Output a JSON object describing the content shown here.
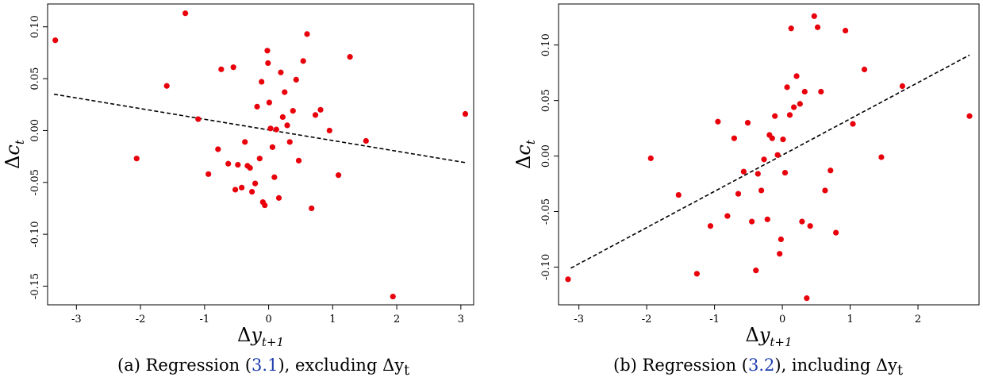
{
  "chart_data": [
    {
      "type": "scatter",
      "panel": "(a)",
      "xlabel": "Δy_{t+1}",
      "ylabel": "Δc_t",
      "xlim": [
        -3.45,
        3.2
      ],
      "ylim": [
        -0.168,
        0.122
      ],
      "xticks": [
        -3,
        -2,
        -1,
        0,
        1,
        2,
        3
      ],
      "yticks": [
        -0.15,
        -0.1,
        -0.05,
        0.0,
        0.05,
        0.1
      ],
      "xtick_labels": [
        "-3",
        "-2",
        "-1",
        "0",
        "1",
        "2",
        "3"
      ],
      "ytick_labels": [
        "-0.15",
        "-0.10",
        "-0.05",
        "0.00",
        "0.05",
        "0.10"
      ],
      "point_color": "#e8000b",
      "fit_line": {
        "x": [
          -3.35,
          3.08
        ],
        "y": [
          0.035,
          -0.031
        ]
      },
      "points": {
        "x": [
          -3.33,
          -1.3,
          -2.06,
          -1.59,
          -1.1,
          -0.94,
          -0.79,
          -0.74,
          -0.63,
          -0.55,
          -0.52,
          -0.48,
          -0.42,
          -0.37,
          -0.33,
          -0.29,
          -0.26,
          -0.21,
          -0.18,
          -0.14,
          -0.11,
          -0.09,
          -0.06,
          -0.02,
          -0.01,
          0.01,
          0.03,
          0.06,
          0.09,
          0.12,
          0.16,
          0.19,
          0.22,
          0.25,
          0.29,
          0.33,
          0.38,
          0.43,
          0.47,
          0.54,
          0.6,
          0.67,
          0.73,
          0.81,
          0.95,
          1.09,
          1.27,
          1.52,
          1.94,
          3.07
        ],
        "y": [
          0.087,
          0.113,
          -0.027,
          0.043,
          0.011,
          -0.042,
          -0.018,
          0.059,
          -0.032,
          0.061,
          -0.057,
          -0.033,
          -0.055,
          -0.011,
          -0.034,
          -0.036,
          -0.059,
          -0.051,
          0.023,
          -0.027,
          0.047,
          -0.069,
          -0.072,
          0.077,
          0.065,
          0.027,
          0.002,
          -0.016,
          -0.045,
          0.001,
          -0.065,
          0.056,
          0.013,
          0.037,
          0.005,
          -0.011,
          0.019,
          0.049,
          -0.029,
          0.067,
          0.093,
          -0.075,
          0.015,
          0.02,
          0.0,
          -0.043,
          0.071,
          -0.01,
          -0.16,
          0.016
        ]
      }
    },
    {
      "type": "scatter",
      "panel": "(b)",
      "xlabel": "Δy_{t+1}",
      "ylabel": "Δc_t",
      "xlim": [
        -3.3,
        2.9
      ],
      "ylim": [
        -0.134,
        0.137
      ],
      "xticks": [
        -3,
        -2,
        -1,
        0,
        1,
        2
      ],
      "yticks": [
        -0.1,
        -0.05,
        0.0,
        0.05,
        0.1
      ],
      "xtick_labels": [
        "-3",
        "-2",
        "-1",
        "0",
        "1",
        "2"
      ],
      "ytick_labels": [
        "-0.10",
        "-0.05",
        "0.00",
        "0.05",
        "0.10"
      ],
      "point_color": "#e8000b",
      "fit_line": {
        "x": [
          -3.12,
          2.76
        ],
        "y": [
          -0.101,
          0.091
        ]
      },
      "points": {
        "x": [
          -3.16,
          -1.94,
          -1.53,
          -1.26,
          -1.06,
          -0.95,
          -0.81,
          -0.71,
          -0.65,
          -0.57,
          -0.51,
          -0.45,
          -0.39,
          -0.36,
          -0.31,
          -0.27,
          -0.22,
          -0.19,
          -0.15,
          -0.11,
          -0.07,
          -0.04,
          -0.02,
          0.01,
          0.04,
          0.07,
          0.11,
          0.13,
          0.17,
          0.21,
          0.26,
          0.29,
          0.33,
          0.36,
          0.41,
          0.47,
          0.52,
          0.57,
          0.63,
          0.71,
          0.79,
          0.93,
          1.04,
          1.21,
          1.46,
          1.77,
          2.76
        ],
        "y": [
          -0.111,
          -0.002,
          -0.035,
          -0.106,
          -0.063,
          0.031,
          -0.054,
          0.016,
          -0.034,
          -0.014,
          0.03,
          -0.059,
          -0.103,
          -0.016,
          -0.031,
          -0.003,
          -0.057,
          0.019,
          0.016,
          0.036,
          0.001,
          -0.088,
          -0.075,
          0.015,
          -0.015,
          0.062,
          0.037,
          0.115,
          0.044,
          0.072,
          0.047,
          -0.059,
          0.058,
          -0.128,
          -0.063,
          0.126,
          0.116,
          0.058,
          -0.031,
          -0.013,
          -0.069,
          0.113,
          0.029,
          0.078,
          -0.001,
          0.063,
          0.036
        ]
      }
    }
  ],
  "captions": {
    "a": {
      "prefix": "(a) Regression (",
      "ref": "3.1",
      "suffix": "), excluding Δy",
      "sub": "t"
    },
    "b": {
      "prefix": "(b) Regression (",
      "ref": "3.2",
      "suffix": "), including Δy",
      "sub": "t"
    }
  },
  "colors": {
    "reference_link": "#1f3fb0",
    "points": "#e8000b",
    "fit_line": "#000000"
  }
}
